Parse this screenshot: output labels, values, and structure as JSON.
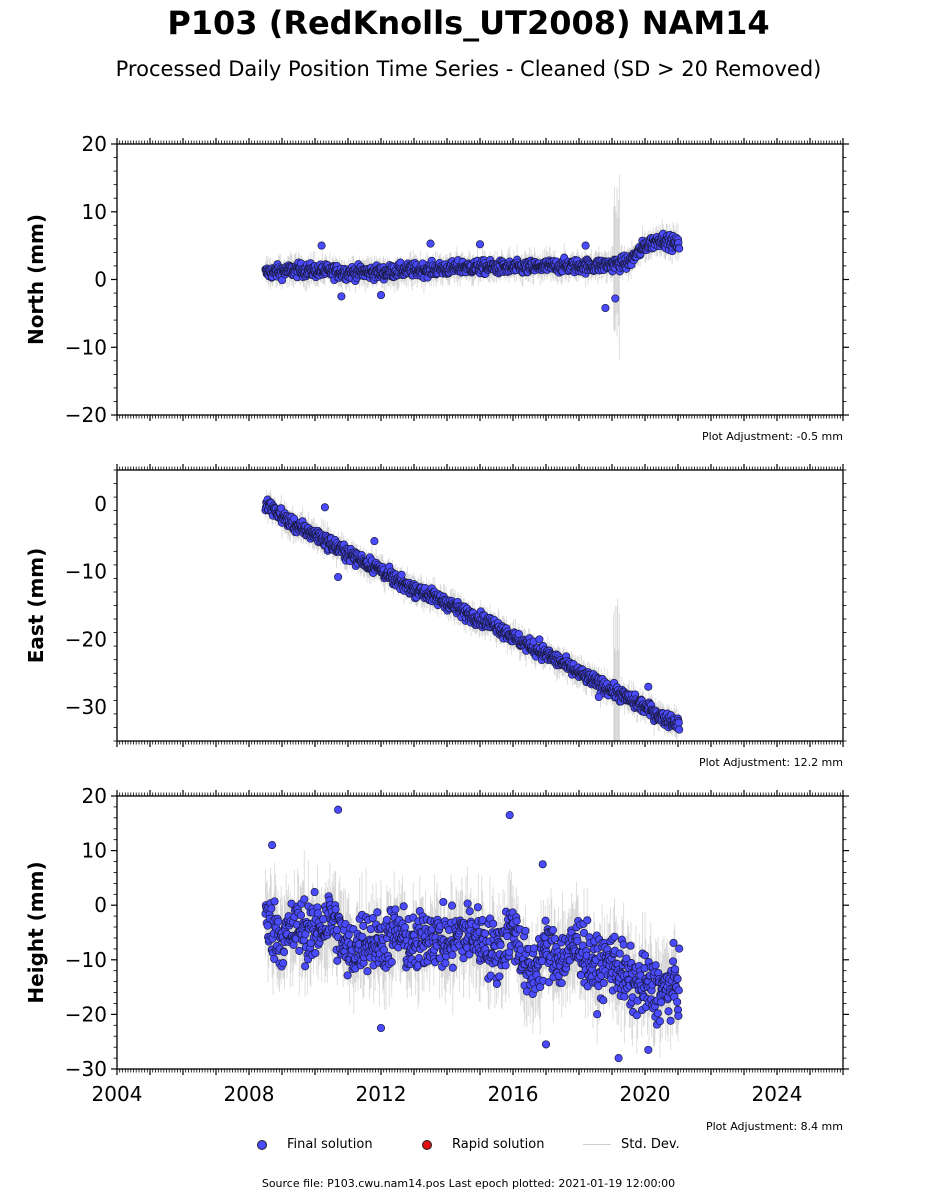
{
  "title": "P103 (RedKnolls_UT2008) NAM14",
  "subtitle": "Processed Daily Position Time Series - Cleaned (SD > 20 Removed)",
  "legend": {
    "final": "Final solution",
    "rapid": "Rapid solution",
    "sd": "Std. Dev."
  },
  "footer": "Source file: P103.cwu.nam14.pos  Last epoch plotted: 2021-01-19 12:00:00",
  "colors": {
    "final": "#4a4aff",
    "rapid": "#e01010",
    "sd": "#cfcfcf"
  },
  "chart_data": [
    {
      "type": "scatter",
      "ylabel": "North (mm)",
      "xlim": [
        2004,
        2026
      ],
      "ylim": [
        -20,
        20
      ],
      "yticks": [
        -20,
        -10,
        0,
        10,
        20
      ],
      "xtick_labels_shown": false,
      "adjustment": "Plot Adjustment: -0.5 mm",
      "series": [
        {
          "x": [
            2008.5,
            2009.0,
            2009.5,
            2010.0,
            2010.5,
            2011.0,
            2011.5,
            2012.0,
            2012.5,
            2013.0,
            2013.5,
            2014.0,
            2014.5,
            2015.0,
            2015.5,
            2016.0,
            2016.5,
            2017.0,
            2017.5,
            2018.0,
            2018.5,
            2019.0,
            2019.5,
            2020.0,
            2020.5,
            2021.05
          ],
          "y": [
            1.0,
            1.2,
            1.4,
            1.3,
            1.2,
            1.0,
            1.1,
            1.0,
            1.3,
            1.4,
            1.5,
            1.6,
            1.8,
            1.8,
            1.8,
            1.7,
            1.8,
            1.9,
            2.0,
            2.0,
            2.0,
            2.2,
            2.5,
            5.0,
            6.0,
            5.0
          ]
        }
      ],
      "outliers": [
        [
          2010.2,
          5.0
        ],
        [
          2013.5,
          5.3
        ],
        [
          2015.0,
          5.2
        ],
        [
          2018.2,
          5.0
        ],
        [
          2018.8,
          -4.2
        ],
        [
          2019.1,
          -2.8
        ],
        [
          2010.8,
          -2.5
        ],
        [
          2012.0,
          -2.3
        ]
      ]
    },
    {
      "type": "scatter",
      "ylabel": "East (mm)",
      "xlim": [
        2004,
        2026
      ],
      "ylim": [
        -35,
        5
      ],
      "yticks": [
        -30,
        -20,
        -10,
        0
      ],
      "xtick_labels_shown": false,
      "adjustment": "Plot Adjustment: 12.2 mm",
      "series": [
        {
          "x": [
            2008.5,
            2009.0,
            2009.5,
            2010.0,
            2010.5,
            2011.0,
            2011.5,
            2012.0,
            2012.5,
            2013.0,
            2013.5,
            2014.0,
            2014.5,
            2015.0,
            2015.5,
            2016.0,
            2016.5,
            2017.0,
            2017.5,
            2018.0,
            2018.5,
            2019.0,
            2019.5,
            2020.0,
            2020.5,
            2021.05
          ],
          "y": [
            0.0,
            -1.8,
            -3.5,
            -4.5,
            -6.0,
            -7.3,
            -8.6,
            -9.7,
            -11.5,
            -12.5,
            -13.5,
            -14.6,
            -16.0,
            -17.0,
            -18.0,
            -19.7,
            -21.0,
            -22.2,
            -23.5,
            -25.0,
            -26.3,
            -27.5,
            -28.8,
            -30.0,
            -31.5,
            -32.5
          ]
        }
      ],
      "outliers": [
        [
          2010.3,
          -0.5
        ],
        [
          2011.8,
          -5.5
        ],
        [
          2010.7,
          -10.8
        ],
        [
          2016.8,
          -20.0
        ],
        [
          2018.6,
          -28.5
        ],
        [
          2020.1,
          -27.0
        ]
      ]
    },
    {
      "type": "scatter",
      "ylabel": "Height (mm)",
      "xlim": [
        2004,
        2026
      ],
      "ylim": [
        -30,
        20
      ],
      "yticks": [
        -30,
        -20,
        -10,
        0,
        10,
        20
      ],
      "xtick_labels": [
        "2004",
        "2008",
        "2012",
        "2016",
        "2020",
        "2024"
      ],
      "adjustment": "Plot Adjustment: 8.4 mm",
      "series": [
        {
          "x": [
            2008.5,
            2009.0,
            2009.5,
            2010.0,
            2010.5,
            2011.0,
            2011.5,
            2012.0,
            2012.5,
            2013.0,
            2013.5,
            2014.0,
            2014.5,
            2015.0,
            2015.5,
            2016.0,
            2016.5,
            2017.0,
            2017.5,
            2018.0,
            2018.5,
            2019.0,
            2019.5,
            2020.0,
            2020.5,
            2021.05
          ],
          "y": [
            -3.0,
            -6.0,
            -4.0,
            -5.0,
            -2.0,
            -9.0,
            -6.0,
            -7.0,
            -5.0,
            -8.0,
            -5.0,
            -7.0,
            -5.0,
            -6.0,
            -9.0,
            -4.0,
            -13.0,
            -8.0,
            -10.0,
            -7.0,
            -12.0,
            -10.0,
            -14.0,
            -15.0,
            -16.0,
            -14.0
          ]
        }
      ],
      "outliers": [
        [
          2010.7,
          17.5
        ],
        [
          2015.9,
          16.5
        ],
        [
          2008.7,
          11.0
        ],
        [
          2016.9,
          7.5
        ],
        [
          2012.0,
          -22.5
        ],
        [
          2017.0,
          -25.5
        ],
        [
          2019.2,
          -28.0
        ],
        [
          2020.1,
          -26.5
        ]
      ]
    }
  ]
}
